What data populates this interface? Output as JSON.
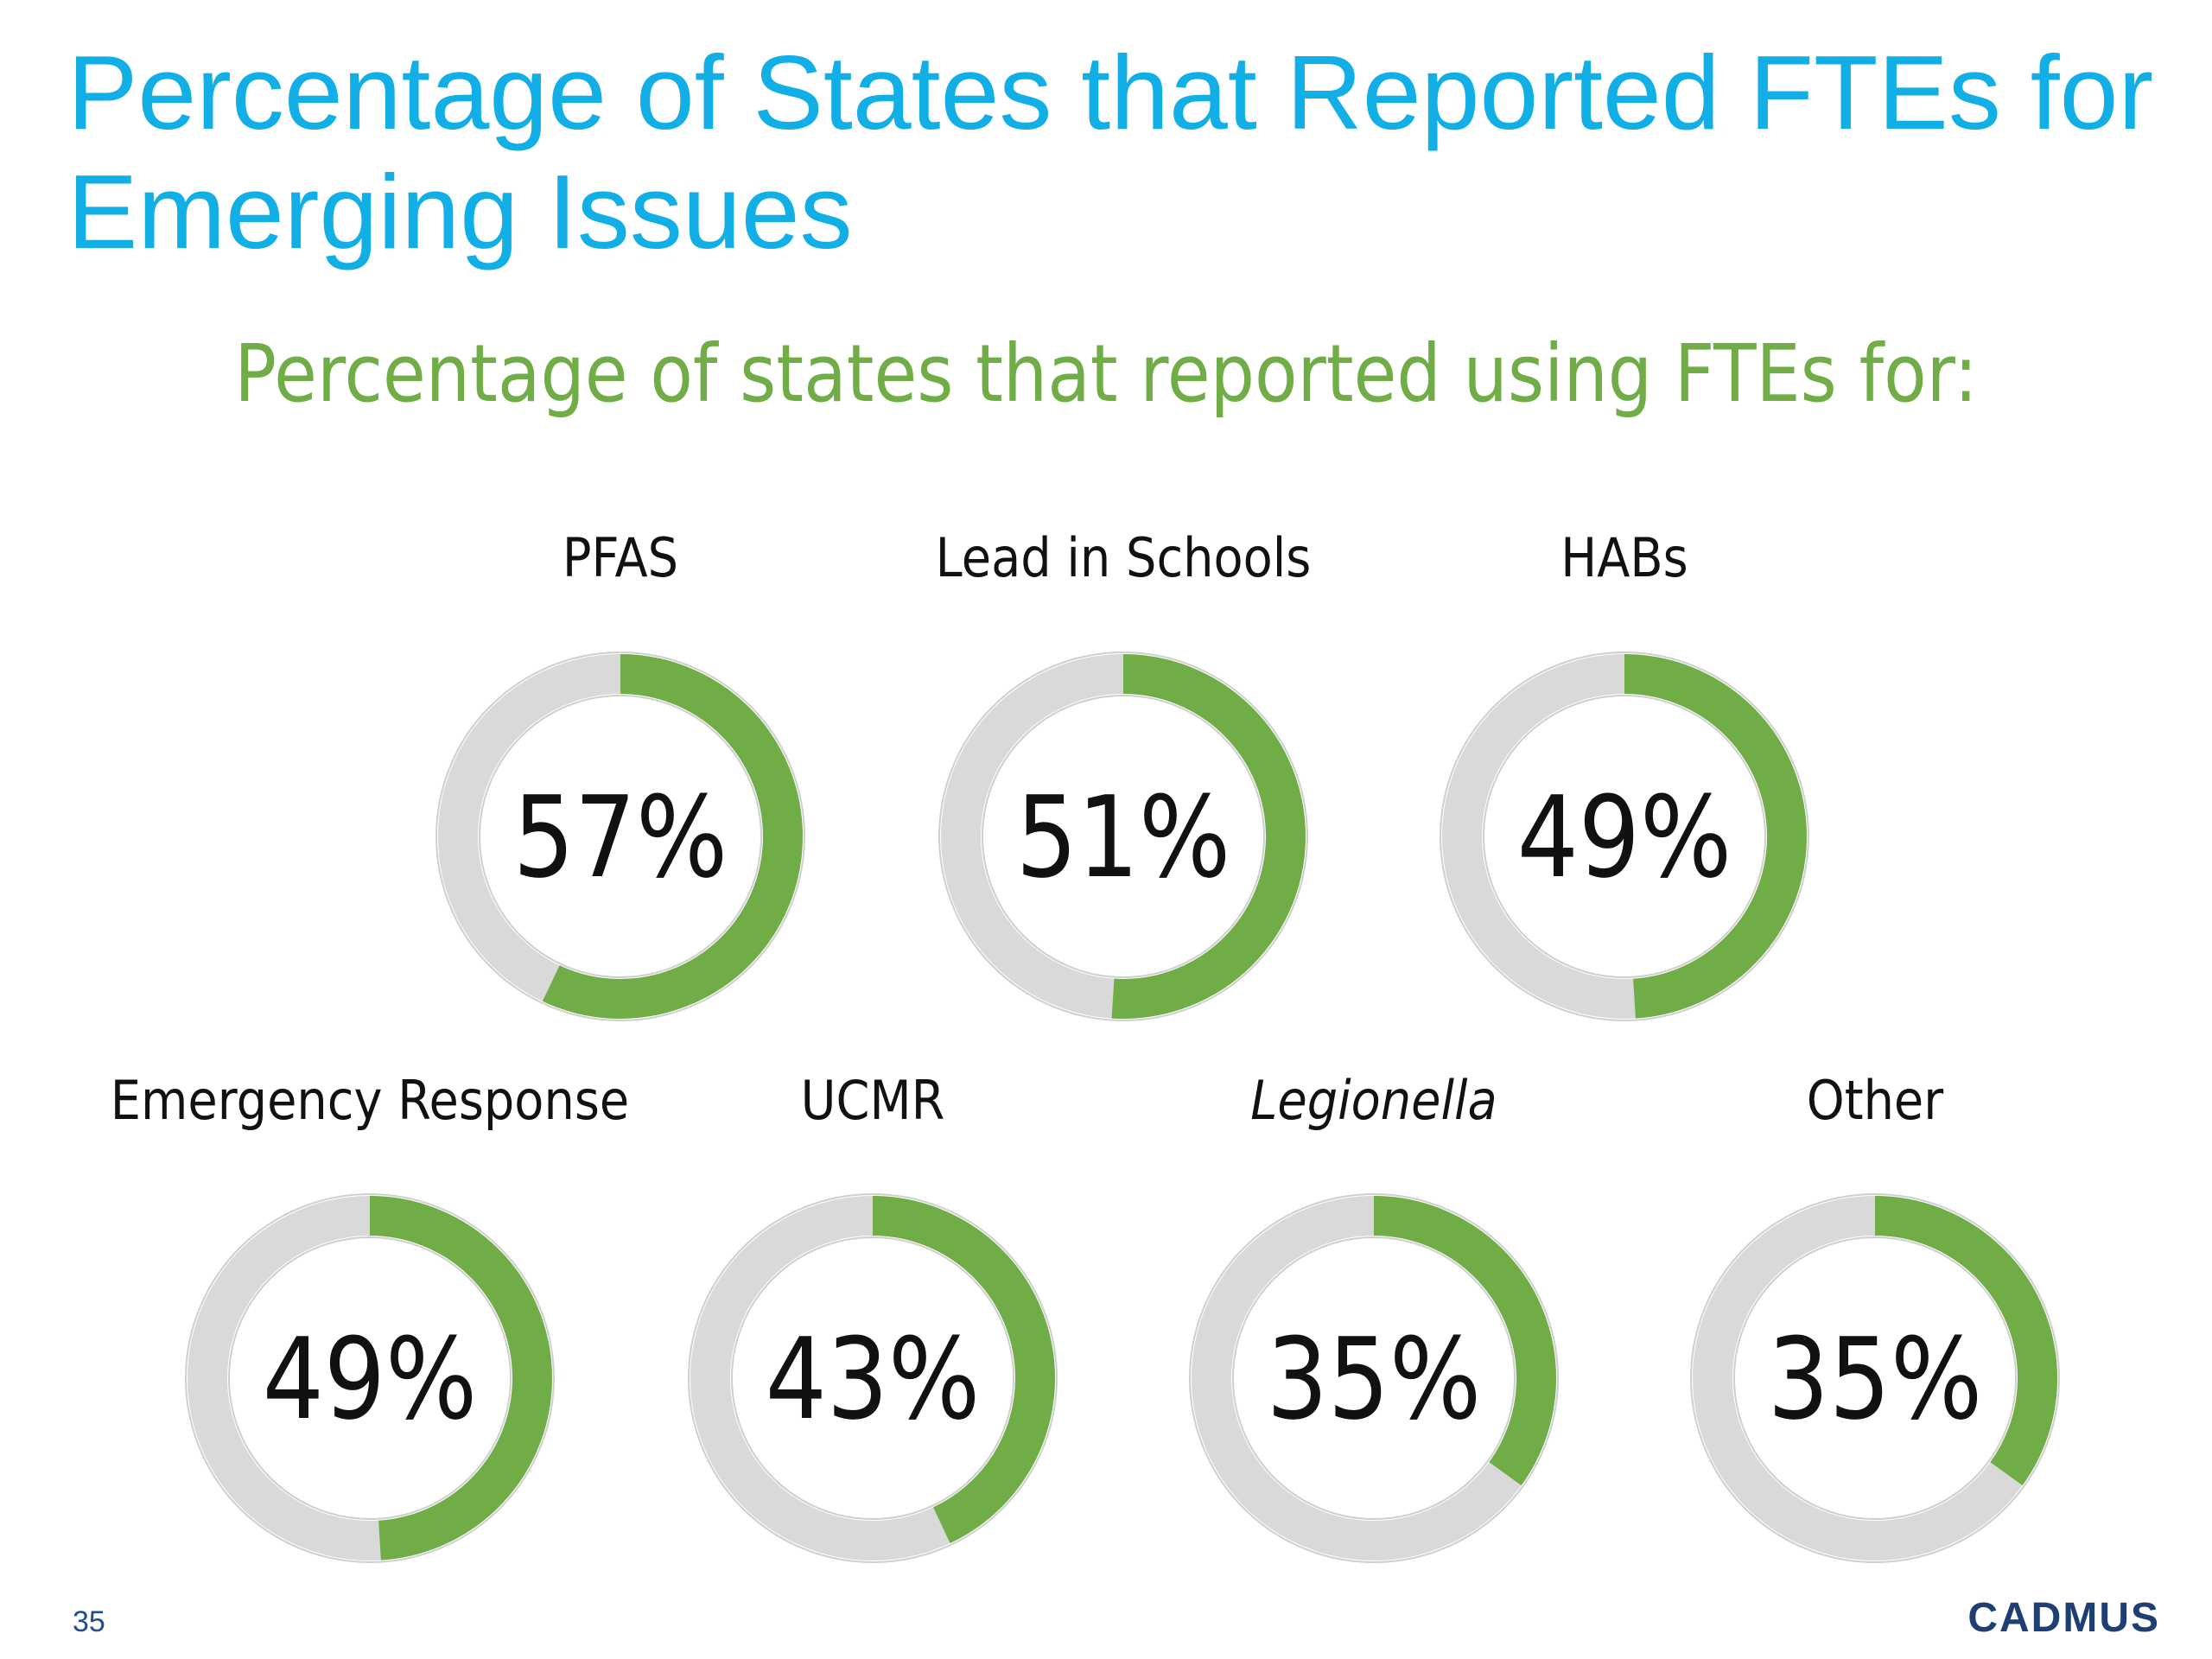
{
  "slide": {
    "title": "Percentage of States that Reported FTEs for Emerging Issues",
    "subtitle": "Percentage of states that reported using FTEs for:",
    "page_number": "35",
    "logo": "CADMUS"
  },
  "colors": {
    "title": "#12aee6",
    "subtitle": "#70ad47",
    "ring_fill": "#70ad47",
    "ring_track": "#d9d9d9",
    "logo": "#1f3f73"
  },
  "chart_data": {
    "type": "donut",
    "title": "",
    "items": [
      {
        "label": "PFAS",
        "value": 57,
        "value_label": "57%",
        "italic": false
      },
      {
        "label": "Lead in Schools",
        "value": 51,
        "value_label": "51%",
        "italic": false
      },
      {
        "label": "HABs",
        "value": 49,
        "value_label": "49%",
        "italic": false
      },
      {
        "label": "Emergency Response",
        "value": 49,
        "value_label": "49%",
        "italic": false
      },
      {
        "label": "UCMR",
        "value": 43,
        "value_label": "43%",
        "italic": false
      },
      {
        "label": "Legionella",
        "value": 35,
        "value_label": "35%",
        "italic": true
      },
      {
        "label": "Other",
        "value": 35,
        "value_label": "35%",
        "italic": false
      }
    ]
  }
}
